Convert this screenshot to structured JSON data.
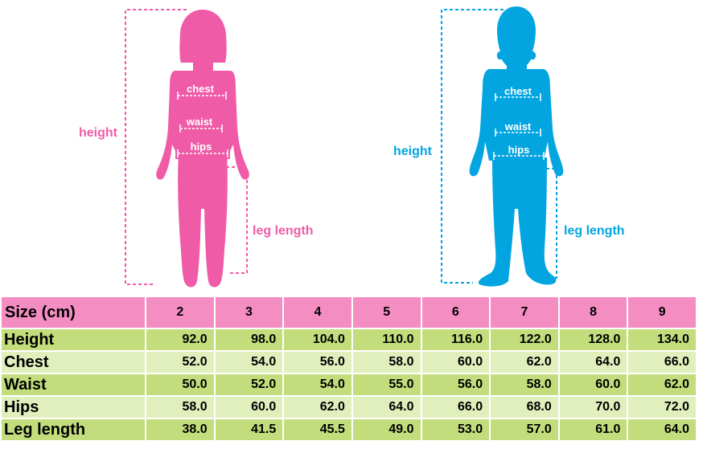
{
  "colors": {
    "girl": "#f05ba7",
    "boy": "#03a5e0",
    "header_pink": "#f48ec2",
    "row_green": "#c3dd7c",
    "row_light_green": "#e1efbd"
  },
  "figures": {
    "girl": {
      "height_label": "height",
      "chest_label": "chest",
      "waist_label": "waist",
      "hips_label": "hips",
      "leg_length_label": "leg length"
    },
    "boy": {
      "height_label": "height",
      "chest_label": "chest",
      "waist_label": "waist",
      "hips_label": "hips",
      "leg_length_label": "leg length"
    }
  },
  "table": {
    "header_label": "Size (cm)",
    "sizes": [
      "2",
      "3",
      "4",
      "5",
      "6",
      "7",
      "8",
      "9"
    ],
    "rows": [
      {
        "label": "Height",
        "values": [
          "92.0",
          "98.0",
          "104.0",
          "110.0",
          "116.0",
          "122.0",
          "128.0",
          "134.0"
        ]
      },
      {
        "label": "Chest",
        "values": [
          "52.0",
          "54.0",
          "56.0",
          "58.0",
          "60.0",
          "62.0",
          "64.0",
          "66.0"
        ]
      },
      {
        "label": "Waist",
        "values": [
          "50.0",
          "52.0",
          "54.0",
          "55.0",
          "56.0",
          "58.0",
          "60.0",
          "62.0"
        ]
      },
      {
        "label": "Hips",
        "values": [
          "58.0",
          "60.0",
          "62.0",
          "64.0",
          "66.0",
          "68.0",
          "70.0",
          "72.0"
        ]
      },
      {
        "label": "Leg length",
        "values": [
          "38.0",
          "41.5",
          "45.5",
          "49.0",
          "53.0",
          "57.0",
          "61.0",
          "64.0"
        ]
      }
    ]
  }
}
